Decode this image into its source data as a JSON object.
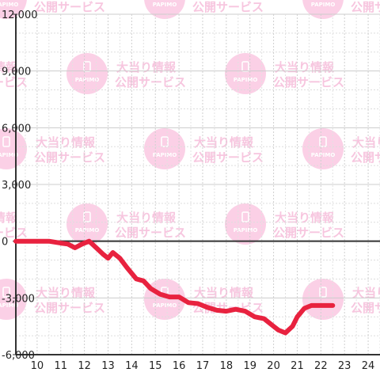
{
  "chart_data": {
    "type": "line",
    "title": "",
    "xlabel": "",
    "ylabel": "",
    "xlim": [
      9.1,
      24.5
    ],
    "ylim": [
      -6000,
      12000
    ],
    "x_ticks": [
      10,
      11,
      12,
      13,
      14,
      15,
      16,
      17,
      18,
      19,
      20,
      21,
      22,
      23,
      24
    ],
    "y_ticks": [
      -6000,
      -3000,
      0,
      3000,
      6000,
      9000,
      12000
    ],
    "y_tick_labels": [
      "-6,000",
      "-3,000",
      "0",
      "3,000",
      "6,000",
      "9,000",
      "12,000"
    ],
    "grid": true,
    "line_color": "#e8223f",
    "series": [
      {
        "x": [
          9.1,
          10.0,
          10.5,
          11.0,
          11.3,
          11.6,
          11.9,
          12.2,
          12.5,
          12.8,
          13.0,
          13.2,
          13.5,
          13.8,
          14.2,
          14.5,
          14.8,
          15.2,
          15.6,
          16.0,
          16.4,
          16.8,
          17.2,
          17.6,
          18.0,
          18.4,
          18.8,
          19.2,
          19.6,
          20.0,
          20.2,
          20.5,
          20.8,
          21.0,
          21.3,
          21.6,
          22.0,
          22.5
        ],
        "y": [
          0,
          0,
          0,
          -100,
          -150,
          -350,
          -150,
          0,
          -350,
          -700,
          -900,
          -600,
          -900,
          -1400,
          -2000,
          -2100,
          -2500,
          -2800,
          -2950,
          -2950,
          -3250,
          -3300,
          -3500,
          -3650,
          -3700,
          -3600,
          -3700,
          -4000,
          -4100,
          -4500,
          -4700,
          -4850,
          -4500,
          -4000,
          -3550,
          -3400,
          -3400,
          -3400
        ]
      }
    ]
  },
  "watermark": {
    "line1": "大当り情報",
    "line2": "公開サービス",
    "logo_text": "PAPIMO",
    "color": "#fbd0e6"
  }
}
